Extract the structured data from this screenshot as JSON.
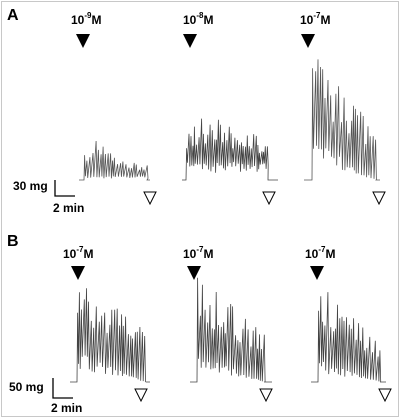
{
  "panels": [
    {
      "letter": "A",
      "doses": [
        {
          "base": "10",
          "exp": "-9",
          "unit": "M"
        },
        {
          "base": "10",
          "exp": "-8",
          "unit": "M"
        },
        {
          "base": "10",
          "exp": "-7",
          "unit": "M"
        }
      ],
      "scale": {
        "amplitude": "30 mg",
        "time": "2 min"
      }
    },
    {
      "letter": "B",
      "doses": [
        {
          "base": "10",
          "exp": "-7",
          "unit": "M"
        },
        {
          "base": "10",
          "exp": "-7",
          "unit": "M"
        },
        {
          "base": "10",
          "exp": "-7",
          "unit": "M"
        }
      ],
      "scale": {
        "amplitude": "50 mg",
        "time": "2 min"
      }
    }
  ],
  "colors": {
    "trace": "#555555",
    "marker": "#000000",
    "frame": "#c8c8c8"
  }
}
